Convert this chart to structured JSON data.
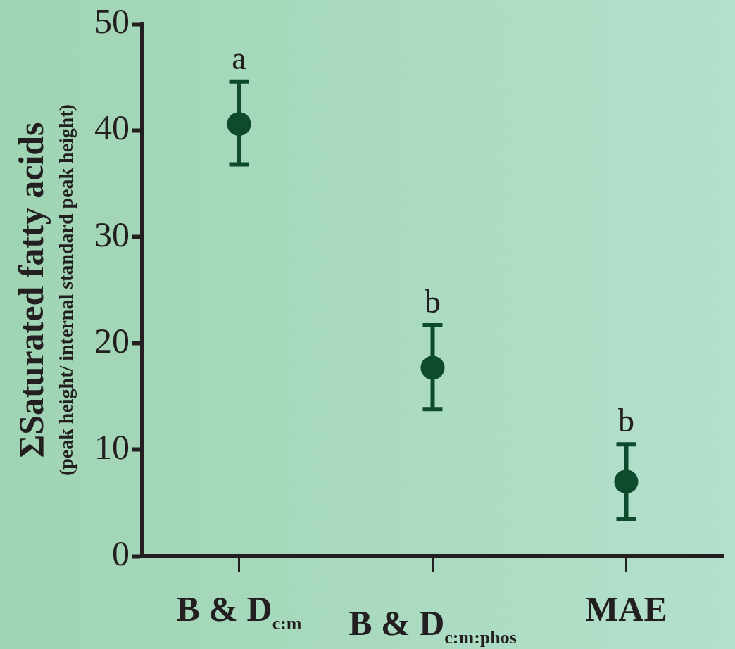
{
  "chart_data": {
    "type": "scatter",
    "ylabel": "ΣSaturated fatty acids\n(peak height/ internal standard peak height)",
    "categories": [
      "B & D$_{c:m}$",
      "B & D$_{c:m:phos}$",
      "MAE"
    ],
    "series": [
      {
        "color": "#0d4a2e",
        "values": [
          40.6,
          17.7,
          7.0
        ],
        "errors": [
          [
            36.8,
            44.6
          ],
          [
            13.8,
            21.7
          ],
          [
            3.5,
            10.5
          ]
        ]
      }
    ],
    "ylim": [
      0,
      50
    ],
    "yticks": [
      0,
      10,
      20,
      30,
      40,
      50
    ],
    "annotations": [
      "a",
      "b",
      "b"
    ],
    "grid": false,
    "legend": false,
    "marker": "circle"
  }
}
